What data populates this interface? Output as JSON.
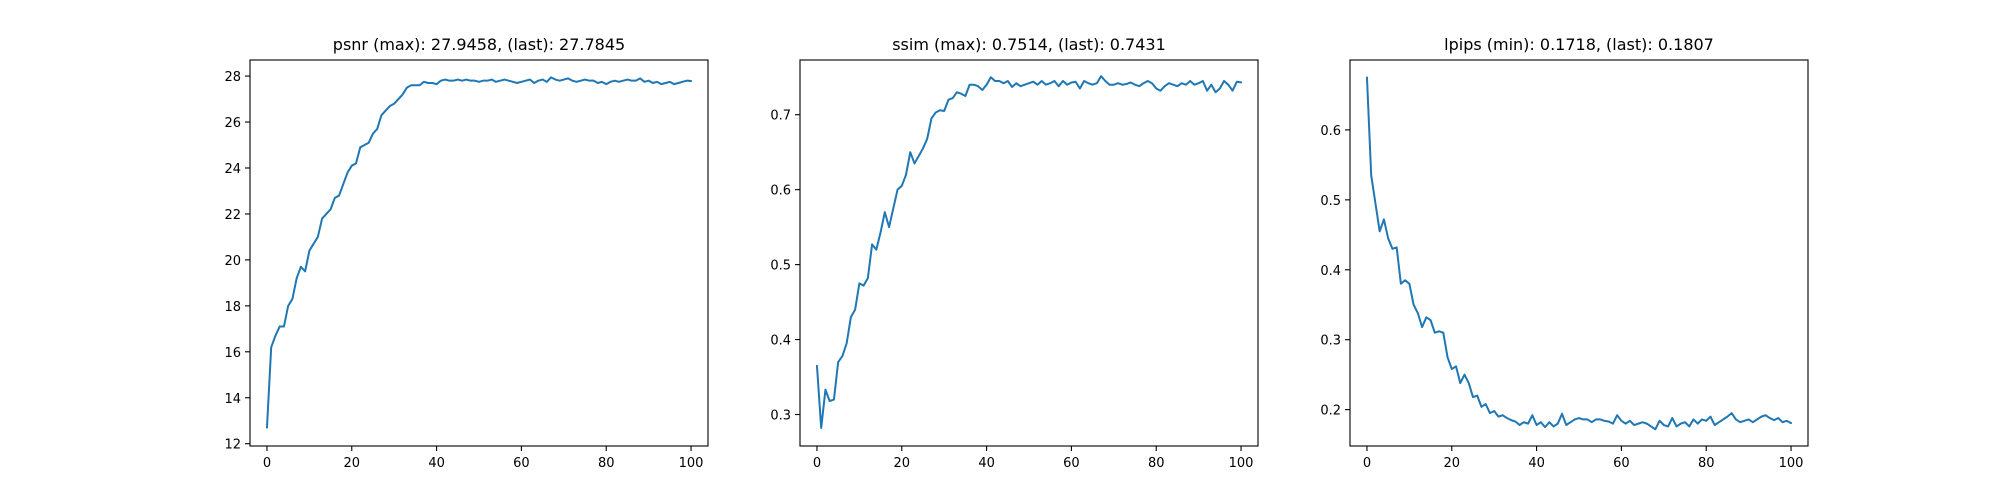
{
  "chart_data": [
    {
      "type": "line",
      "title": "psnr (max): 27.9458, (last): 27.7845",
      "xlabel": "",
      "ylabel": "",
      "xlim": [
        -4,
        104
      ],
      "ylim": [
        11.9,
        28.7
      ],
      "xticks": [
        0,
        20,
        40,
        60,
        80,
        100
      ],
      "yticks": [
        12,
        14,
        16,
        18,
        20,
        22,
        24,
        26,
        28
      ],
      "grid": false,
      "series": [
        {
          "color": "#1f77b4",
          "x": [
            0,
            1,
            2,
            3,
            4,
            5,
            6,
            7,
            8,
            9,
            10,
            11,
            12,
            13,
            14,
            15,
            16,
            17,
            18,
            19,
            20,
            21,
            22,
            23,
            24,
            25,
            26,
            27,
            28,
            29,
            30,
            31,
            32,
            33,
            34,
            35,
            36,
            37,
            38,
            39,
            40,
            41,
            42,
            43,
            44,
            45,
            46,
            47,
            48,
            49,
            50,
            51,
            52,
            53,
            54,
            55,
            56,
            57,
            58,
            59,
            60,
            61,
            62,
            63,
            64,
            65,
            66,
            67,
            68,
            69,
            70,
            71,
            72,
            73,
            74,
            75,
            76,
            77,
            78,
            79,
            80,
            81,
            82,
            83,
            84,
            85,
            86,
            87,
            88,
            89,
            90,
            91,
            92,
            93,
            94,
            95,
            96,
            97,
            98,
            99,
            100
          ],
          "y": [
            12.7,
            16.2,
            16.7,
            17.1,
            17.1,
            18.0,
            18.3,
            19.2,
            19.7,
            19.5,
            20.4,
            20.7,
            21.0,
            21.8,
            22.0,
            22.2,
            22.7,
            22.8,
            23.3,
            23.8,
            24.1,
            24.2,
            24.9,
            25.0,
            25.1,
            25.5,
            25.7,
            26.3,
            26.5,
            26.7,
            26.8,
            27.0,
            27.2,
            27.5,
            27.6,
            27.6,
            27.6,
            27.75,
            27.7,
            27.7,
            27.65,
            27.8,
            27.85,
            27.8,
            27.8,
            27.85,
            27.8,
            27.85,
            27.8,
            27.8,
            27.75,
            27.8,
            27.8,
            27.85,
            27.75,
            27.8,
            27.85,
            27.8,
            27.75,
            27.7,
            27.75,
            27.8,
            27.85,
            27.7,
            27.8,
            27.85,
            27.75,
            27.9458,
            27.85,
            27.8,
            27.85,
            27.9,
            27.8,
            27.75,
            27.8,
            27.85,
            27.8,
            27.8,
            27.7,
            27.75,
            27.65,
            27.75,
            27.8,
            27.75,
            27.8,
            27.85,
            27.8,
            27.8,
            27.9,
            27.75,
            27.8,
            27.7,
            27.75,
            27.65,
            27.7,
            27.75,
            27.65,
            27.7,
            27.75,
            27.8,
            27.7845
          ]
        }
      ]
    },
    {
      "type": "line",
      "title": "ssim (max): 0.7514, (last): 0.7431",
      "xlabel": "",
      "ylabel": "",
      "xlim": [
        -4,
        104
      ],
      "ylim": [
        0.258,
        0.773
      ],
      "xticks": [
        0,
        20,
        40,
        60,
        80,
        100
      ],
      "yticks": [
        0.3,
        0.4,
        0.5,
        0.6,
        0.7
      ],
      "grid": false,
      "series": [
        {
          "color": "#1f77b4",
          "x": [
            0,
            1,
            2,
            3,
            4,
            5,
            6,
            7,
            8,
            9,
            10,
            11,
            12,
            13,
            14,
            15,
            16,
            17,
            18,
            19,
            20,
            21,
            22,
            23,
            24,
            25,
            26,
            27,
            28,
            29,
            30,
            31,
            32,
            33,
            34,
            35,
            36,
            37,
            38,
            39,
            40,
            41,
            42,
            43,
            44,
            45,
            46,
            47,
            48,
            49,
            50,
            51,
            52,
            53,
            54,
            55,
            56,
            57,
            58,
            59,
            60,
            61,
            62,
            63,
            64,
            65,
            66,
            67,
            68,
            69,
            70,
            71,
            72,
            73,
            74,
            75,
            76,
            77,
            78,
            79,
            80,
            81,
            82,
            83,
            84,
            85,
            86,
            87,
            88,
            89,
            90,
            91,
            92,
            93,
            94,
            95,
            96,
            97,
            98,
            99,
            100
          ],
          "y": [
            0.365,
            0.282,
            0.333,
            0.318,
            0.32,
            0.37,
            0.378,
            0.395,
            0.43,
            0.44,
            0.475,
            0.472,
            0.482,
            0.527,
            0.52,
            0.543,
            0.57,
            0.55,
            0.575,
            0.6,
            0.605,
            0.62,
            0.65,
            0.635,
            0.645,
            0.655,
            0.668,
            0.695,
            0.703,
            0.706,
            0.705,
            0.72,
            0.722,
            0.73,
            0.728,
            0.725,
            0.74,
            0.74,
            0.738,
            0.733,
            0.74,
            0.75,
            0.745,
            0.745,
            0.742,
            0.745,
            0.737,
            0.742,
            0.738,
            0.74,
            0.742,
            0.744,
            0.74,
            0.745,
            0.74,
            0.742,
            0.745,
            0.738,
            0.745,
            0.74,
            0.743,
            0.744,
            0.735,
            0.745,
            0.742,
            0.74,
            0.742,
            0.7514,
            0.745,
            0.74,
            0.74,
            0.742,
            0.74,
            0.741,
            0.743,
            0.74,
            0.738,
            0.742,
            0.745,
            0.742,
            0.735,
            0.732,
            0.738,
            0.742,
            0.74,
            0.738,
            0.742,
            0.74,
            0.745,
            0.74,
            0.742,
            0.745,
            0.732,
            0.74,
            0.73,
            0.735,
            0.745,
            0.74,
            0.732,
            0.744,
            0.7431
          ]
        }
      ]
    },
    {
      "type": "line",
      "title": "lpips (min): 0.1718, (last): 0.1807",
      "xlabel": "",
      "ylabel": "",
      "xlim": [
        -4,
        104
      ],
      "ylim": [
        0.148,
        0.7
      ],
      "xticks": [
        0,
        20,
        40,
        60,
        80,
        100
      ],
      "yticks": [
        0.2,
        0.3,
        0.4,
        0.5,
        0.6
      ],
      "grid": false,
      "series": [
        {
          "color": "#1f77b4",
          "x": [
            0,
            1,
            2,
            3,
            4,
            5,
            6,
            7,
            8,
            9,
            10,
            11,
            12,
            13,
            14,
            15,
            16,
            17,
            18,
            19,
            20,
            21,
            22,
            23,
            24,
            25,
            26,
            27,
            28,
            29,
            30,
            31,
            32,
            33,
            34,
            35,
            36,
            37,
            38,
            39,
            40,
            41,
            42,
            43,
            44,
            45,
            46,
            47,
            48,
            49,
            50,
            51,
            52,
            53,
            54,
            55,
            56,
            57,
            58,
            59,
            60,
            61,
            62,
            63,
            64,
            65,
            66,
            67,
            68,
            69,
            70,
            71,
            72,
            73,
            74,
            75,
            76,
            77,
            78,
            79,
            80,
            81,
            82,
            83,
            84,
            85,
            86,
            87,
            88,
            89,
            90,
            91,
            92,
            93,
            94,
            95,
            96,
            97,
            98,
            99,
            100
          ],
          "y": [
            0.675,
            0.535,
            0.495,
            0.455,
            0.472,
            0.445,
            0.43,
            0.432,
            0.38,
            0.385,
            0.38,
            0.35,
            0.338,
            0.318,
            0.332,
            0.328,
            0.31,
            0.312,
            0.31,
            0.275,
            0.258,
            0.262,
            0.238,
            0.25,
            0.238,
            0.218,
            0.22,
            0.204,
            0.208,
            0.195,
            0.198,
            0.19,
            0.192,
            0.188,
            0.185,
            0.183,
            0.178,
            0.182,
            0.18,
            0.192,
            0.178,
            0.182,
            0.175,
            0.182,
            0.176,
            0.18,
            0.194,
            0.178,
            0.182,
            0.186,
            0.188,
            0.186,
            0.186,
            0.182,
            0.186,
            0.186,
            0.184,
            0.183,
            0.18,
            0.192,
            0.184,
            0.18,
            0.184,
            0.178,
            0.18,
            0.182,
            0.18,
            0.176,
            0.1718,
            0.184,
            0.178,
            0.176,
            0.188,
            0.176,
            0.18,
            0.182,
            0.176,
            0.186,
            0.18,
            0.186,
            0.184,
            0.19,
            0.178,
            0.182,
            0.186,
            0.19,
            0.195,
            0.186,
            0.182,
            0.184,
            0.186,
            0.182,
            0.186,
            0.19,
            0.192,
            0.188,
            0.185,
            0.188,
            0.182,
            0.184,
            0.1807
          ]
        }
      ]
    }
  ]
}
